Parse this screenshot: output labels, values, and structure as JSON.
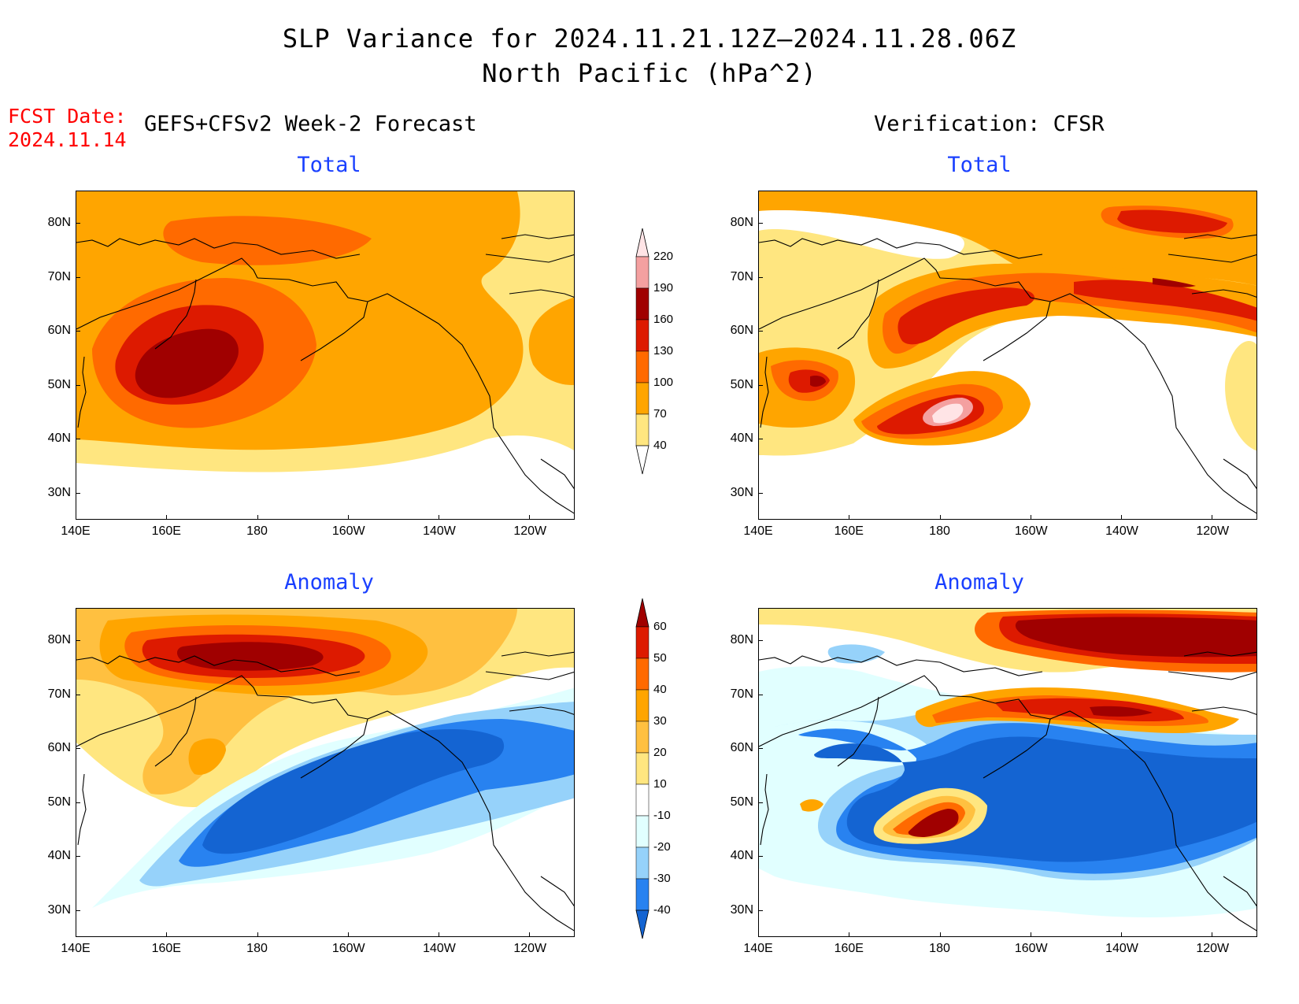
{
  "title_line1": "SLP Variance for 2024.11.21.12Z–2024.11.28.06Z",
  "title_line2": "North Pacific (hPa^2)",
  "fcst_label": "FCST Date:",
  "fcst_date": "2024.11.14",
  "left_header": "GEFS+CFSv2 Week-2 Forecast",
  "right_header": "Verification: CFSR",
  "panel_titles": {
    "top_left": "Total",
    "top_right": "Total",
    "bottom_left": "Anomaly",
    "bottom_right": "Anomaly"
  },
  "map_axes": {
    "lon_ticks": [
      "140E",
      "160E",
      "180",
      "160W",
      "140W",
      "120W"
    ],
    "lat_ticks": [
      "80N",
      "70N",
      "60N",
      "50N",
      "40N",
      "30N"
    ],
    "lon_range": [
      140,
      250
    ],
    "lat_range": [
      25,
      86
    ]
  },
  "colorbars": {
    "total": {
      "levels": [
        "40",
        "70",
        "100",
        "130",
        "160",
        "190",
        "220"
      ],
      "colors": [
        "#ffffff",
        "#ffe680",
        "#ffa500",
        "#ff6a00",
        "#dd1a00",
        "#a00000",
        "#f4a0a0",
        "#ffe4e6"
      ]
    },
    "anomaly": {
      "levels": [
        "-40",
        "-30",
        "-20",
        "-10",
        "10",
        "20",
        "30",
        "40",
        "50",
        "60"
      ],
      "colors": [
        "#1464d2",
        "#2882f0",
        "#96d2fa",
        "#e1ffff",
        "#ffffff",
        "#ffe680",
        "#ffc040",
        "#ffa500",
        "#ff6a00",
        "#dd1a00",
        "#a00000"
      ]
    }
  }
}
